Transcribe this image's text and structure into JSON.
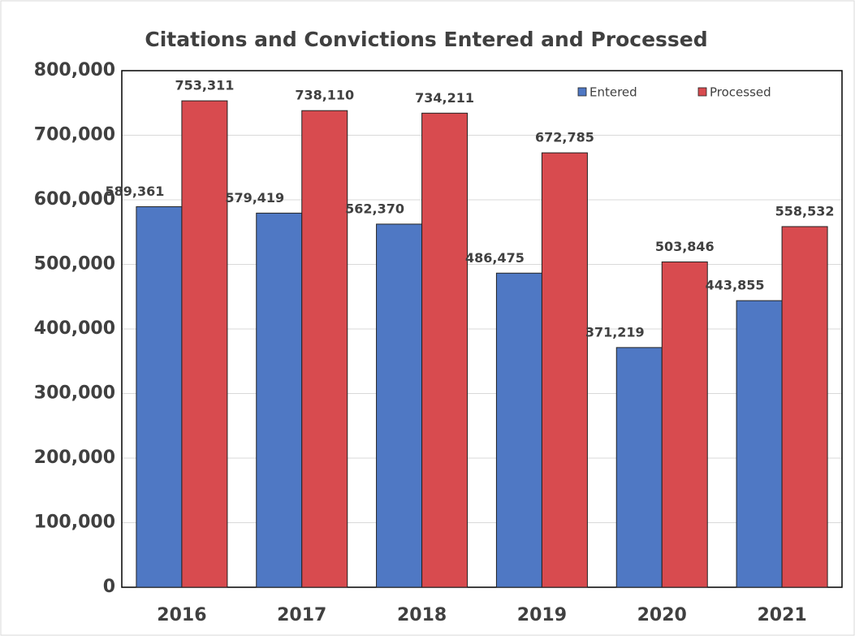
{
  "chart_data": {
    "type": "bar",
    "title": "Citations and Convictions Entered and Processed",
    "categories": [
      "2016",
      "2017",
      "2018",
      "2019",
      "2020",
      "2021"
    ],
    "series": [
      {
        "name": "Entered",
        "color": "#4f78c4",
        "values": [
          589361,
          579419,
          562370,
          486475,
          371219,
          443855
        ],
        "value_labels": [
          "589,361",
          "579,419",
          "562,370",
          "486,475",
          "371,219",
          "443,855"
        ]
      },
      {
        "name": "Processed",
        "color": "#d84b4f",
        "values": [
          753311,
          738110,
          734211,
          672785,
          503846,
          558532
        ],
        "value_labels": [
          "753,311",
          "738,110",
          "734,211",
          "672,785",
          "503,846",
          "558,532"
        ]
      }
    ],
    "ylim": [
      0,
      800000
    ],
    "yticks": [
      0,
      {
        "value": 100000,
        "label": "100,000"
      },
      {
        "value": 200000,
        "label": "200,000"
      },
      {
        "value": 300000,
        "label": "300,000"
      },
      {
        "value": 400000,
        "label": "400,000"
      },
      {
        "value": 500000,
        "label": "500,000"
      },
      {
        "value": 600000,
        "label": "600,000"
      },
      {
        "value": 700000,
        "label": "700,000"
      },
      {
        "value": 800000,
        "label": "800,000"
      }
    ],
    "grid": true,
    "legend": "top-right"
  }
}
